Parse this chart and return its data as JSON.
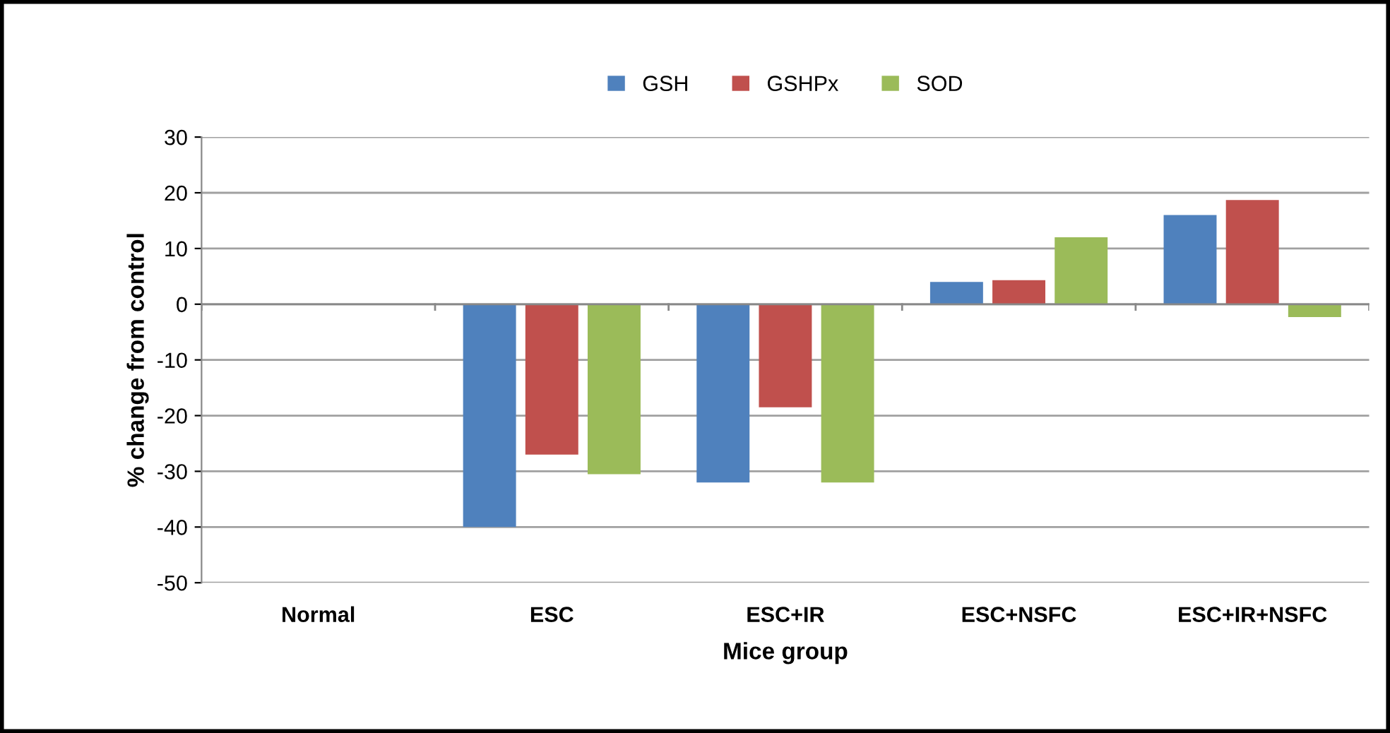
{
  "chart_data": {
    "type": "bar",
    "xlabel": "Mice group",
    "ylabel": "% change from control",
    "categories": [
      "Normal",
      "ESC",
      "ESC+IR",
      "ESC+NSFC",
      "ESC+IR+NSFC"
    ],
    "series": [
      {
        "name": "GSH",
        "color": "#4f81bd",
        "values": [
          0,
          -40,
          -32,
          4,
          16
        ]
      },
      {
        "name": "GSHPx",
        "color": "#c0504d",
        "values": [
          0,
          -27,
          -18.5,
          4.3,
          18.7
        ]
      },
      {
        "name": "SOD",
        "color": "#9bbb59",
        "values": [
          0,
          -30.5,
          -32,
          12,
          -2.3
        ]
      }
    ],
    "ylim": [
      -50,
      30
    ],
    "yticks": [
      -50,
      -40,
      -30,
      -20,
      -10,
      0,
      10,
      20,
      30
    ],
    "grid": "y",
    "legend": "top"
  }
}
